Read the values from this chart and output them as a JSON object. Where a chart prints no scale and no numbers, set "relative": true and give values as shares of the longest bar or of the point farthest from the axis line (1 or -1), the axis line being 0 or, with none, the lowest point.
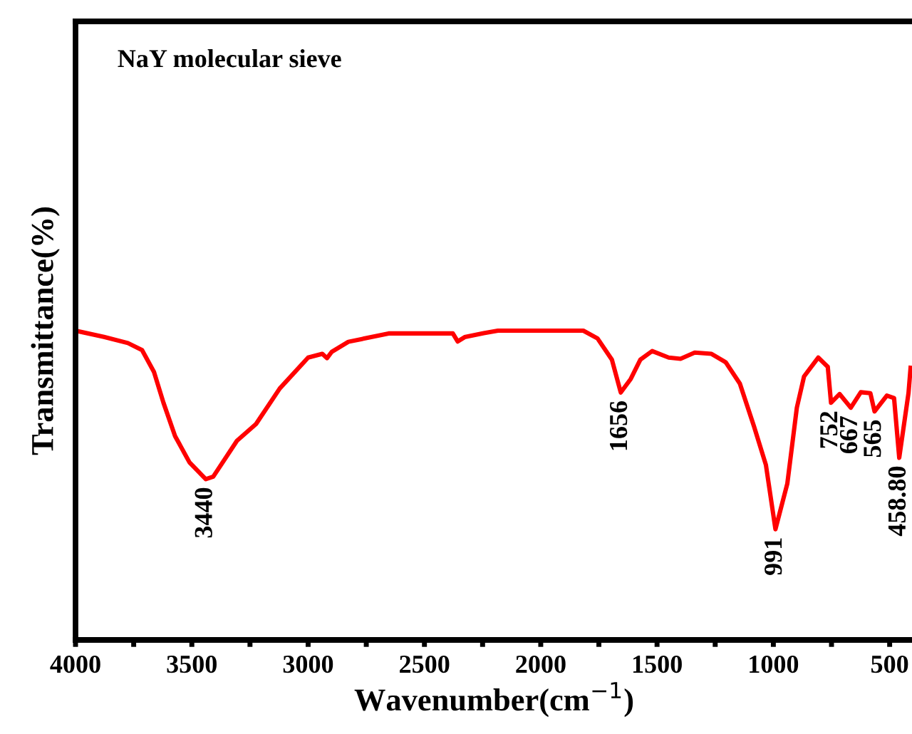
{
  "chart_data": {
    "type": "line",
    "title": "NaY molecular sieve",
    "xlabel": "Wavenumber(cm$^{−1}$)",
    "ylabel": "Transmittance(%)",
    "relative": true,
    "xlim": [
      4000,
      400
    ],
    "xticks": [
      4000,
      {
        "value": 3750,
        "label": null
      },
      3500,
      {
        "value": 3250,
        "label": null
      },
      3000,
      {
        "value": 2750,
        "label": null
      },
      2500,
      {
        "value": 2250,
        "label": null
      },
      2000,
      {
        "value": 1750,
        "label": null
      },
      1500,
      {
        "value": 1250,
        "label": null
      },
      1000,
      {
        "value": 750,
        "label": null
      },
      500
    ],
    "x": [
      4000,
      3878,
      3775,
      3714,
      3663,
      3622,
      3572,
      3510,
      3440,
      3408,
      3306,
      3224,
      3122,
      3000,
      2939,
      2919,
      2898,
      2827,
      2654,
      2449,
      2378,
      2357,
      2327,
      2245,
      2184,
      1817,
      1756,
      1694,
      1656,
      1613,
      1572,
      1521,
      1450,
      1399,
      1338,
      1266,
      1205,
      1144,
      1083,
      1032,
      991,
      940,
      899,
      868,
      807,
      766,
      752,
      715,
      667,
      624,
      583,
      565,
      512,
      481,
      458.8,
      419,
      410
    ],
    "series": [
      {
        "color": "#ff0000",
        "values": [
          1,
          0.98,
          0.96,
          0.937,
          0.867,
          0.767,
          0.659,
          0.574,
          0.52,
          0.528,
          0.644,
          0.698,
          0.813,
          0.913,
          0.925,
          0.911,
          0.932,
          0.964,
          0.991,
          0.991,
          0.991,
          0.965,
          0.979,
          0.992,
          1,
          1,
          0.975,
          0.906,
          0.8,
          0.844,
          0.906,
          0.934,
          0.913,
          0.909,
          0.929,
          0.925,
          0.898,
          0.829,
          0.69,
          0.566,
          0.358,
          0.505,
          0.751,
          0.852,
          0.913,
          0.883,
          0.767,
          0.795,
          0.751,
          0.801,
          0.798,
          0.739,
          0.79,
          0.782,
          0.589,
          0.798,
          0.88
        ]
      }
    ],
    "annotations": [
      {
        "text": "3440",
        "x": 3440,
        "y": 0.52
      },
      {
        "text": "1656",
        "x": 1656,
        "y": 0.8
      },
      {
        "text": "991",
        "x": 991,
        "y": 0.358
      },
      {
        "text": "752",
        "x": 752,
        "y": 0.767
      },
      {
        "text": "667",
        "x": 667,
        "y": 0.751
      },
      {
        "text": "565",
        "x": 565,
        "y": 0.739
      },
      {
        "text": "458.80",
        "x": 458.8,
        "y": 0.589
      }
    ],
    "grid": false,
    "legend": false,
    "marker": "none",
    "line_style": "solid"
  }
}
